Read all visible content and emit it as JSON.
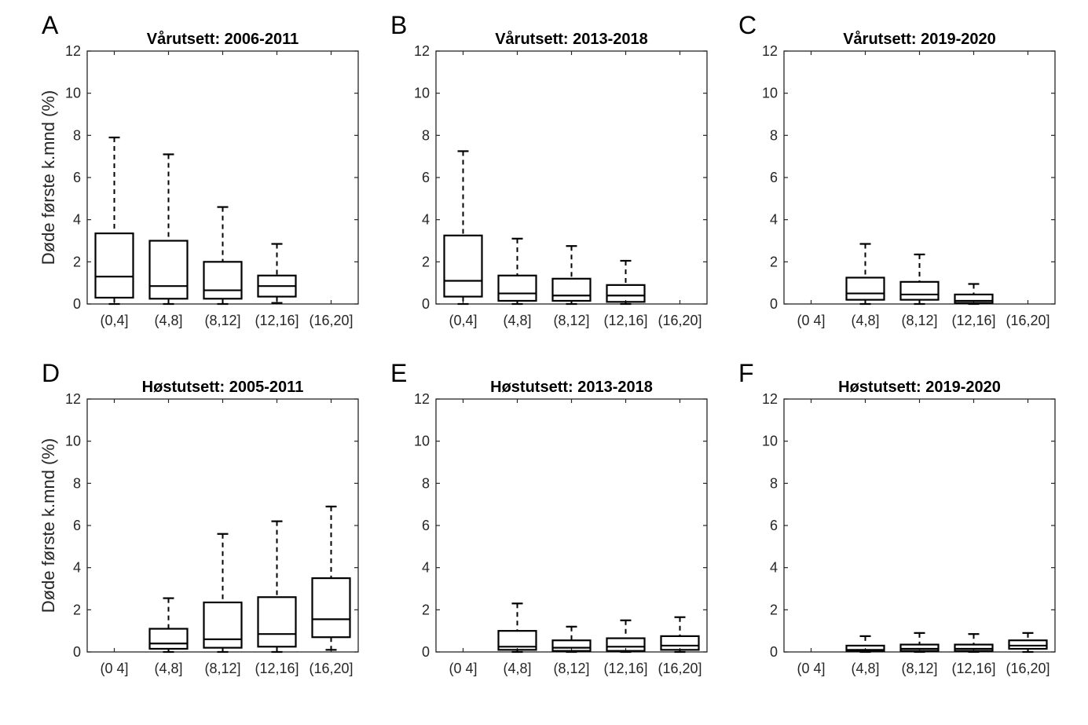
{
  "figure": {
    "y_axis_label": "Døde første k.mnd (%)"
  },
  "chart_data": [
    {
      "type": "boxplot",
      "panel": "A",
      "title": "Vårutsett: 2006-2011",
      "ylabel": "Døde første k.mnd (%)",
      "ylim": [
        0,
        12
      ],
      "yticks": [
        "0",
        "2",
        "4",
        "6",
        "8",
        "10",
        "12"
      ],
      "categories": [
        "(0,4]",
        "(4,8]",
        "(8,12]",
        "(12,16]",
        "(16,20]"
      ],
      "boxes": [
        {
          "category": "(0,4]",
          "min": 0.0,
          "q1": 0.3,
          "median": 1.3,
          "q3": 3.35,
          "max": 7.9
        },
        {
          "category": "(4,8]",
          "min": 0.0,
          "q1": 0.25,
          "median": 0.85,
          "q3": 3.0,
          "max": 7.1
        },
        {
          "category": "(8,12]",
          "min": 0.0,
          "q1": 0.25,
          "median": 0.65,
          "q3": 2.0,
          "max": 4.6
        },
        {
          "category": "(12,16]",
          "min": 0.05,
          "q1": 0.35,
          "median": 0.85,
          "q3": 1.35,
          "max": 2.85
        },
        null
      ]
    },
    {
      "type": "boxplot",
      "panel": "B",
      "title": "Vårutsett: 2013-2018",
      "ylim": [
        0,
        12
      ],
      "yticks": [
        "0",
        "2",
        "4",
        "6",
        "8",
        "10",
        "12"
      ],
      "categories": [
        "(0,4]",
        "(4,8]",
        "(8,12]",
        "(12,16]",
        "(16,20]"
      ],
      "boxes": [
        {
          "category": "(0,4]",
          "min": 0.0,
          "q1": 0.35,
          "median": 1.1,
          "q3": 3.25,
          "max": 7.25
        },
        {
          "category": "(4,8]",
          "min": 0.0,
          "q1": 0.15,
          "median": 0.5,
          "q3": 1.35,
          "max": 3.1
        },
        {
          "category": "(8,12]",
          "min": 0.0,
          "q1": 0.15,
          "median": 0.4,
          "q3": 1.2,
          "max": 2.75
        },
        {
          "category": "(12,16]",
          "min": 0.0,
          "q1": 0.1,
          "median": 0.4,
          "q3": 0.9,
          "max": 2.05
        },
        null
      ]
    },
    {
      "type": "boxplot",
      "panel": "C",
      "title": "Vårutsett: 2019-2020",
      "ylim": [
        0,
        12
      ],
      "yticks": [
        "0",
        "2",
        "4",
        "6",
        "8",
        "10",
        "12"
      ],
      "categories": [
        "(0 4]",
        "(4,8]",
        "(8,12]",
        "(12,16]",
        "(16,20]"
      ],
      "boxes": [
        null,
        {
          "category": "(4,8]",
          "min": 0.0,
          "q1": 0.2,
          "median": 0.5,
          "q3": 1.25,
          "max": 2.85
        },
        {
          "category": "(8,12]",
          "min": 0.0,
          "q1": 0.2,
          "median": 0.45,
          "q3": 1.05,
          "max": 2.35
        },
        {
          "category": "(12,16]",
          "min": 0.0,
          "q1": 0.05,
          "median": 0.15,
          "q3": 0.45,
          "max": 0.95
        },
        null
      ]
    },
    {
      "type": "boxplot",
      "panel": "D",
      "title": "Høstutsett: 2005-2011",
      "ylabel": "Døde første k.mnd (%)",
      "ylim": [
        0,
        12
      ],
      "yticks": [
        "0",
        "2",
        "4",
        "6",
        "8",
        "10",
        "12"
      ],
      "categories": [
        "(0 4]",
        "(4,8]",
        "(8,12]",
        "(12,16]",
        "(16,20]"
      ],
      "boxes": [
        null,
        {
          "category": "(4,8]",
          "min": 0.0,
          "q1": 0.15,
          "median": 0.4,
          "q3": 1.1,
          "max": 2.55
        },
        {
          "category": "(8,12]",
          "min": 0.0,
          "q1": 0.2,
          "median": 0.6,
          "q3": 2.35,
          "max": 5.6
        },
        {
          "category": "(12,16]",
          "min": 0.0,
          "q1": 0.25,
          "median": 0.85,
          "q3": 2.6,
          "max": 6.2
        },
        {
          "category": "(16,20]",
          "min": 0.1,
          "q1": 0.7,
          "median": 1.55,
          "q3": 3.5,
          "max": 6.9
        }
      ]
    },
    {
      "type": "boxplot",
      "panel": "E",
      "title": "Høstutsett: 2013-2018",
      "ylim": [
        0,
        12
      ],
      "yticks": [
        "0",
        "2",
        "4",
        "6",
        "8",
        "10",
        "12"
      ],
      "categories": [
        "(0 4]",
        "(4,8]",
        "(8,12]",
        "(12,16]",
        "(16,20]"
      ],
      "boxes": [
        null,
        {
          "category": "(4,8]",
          "min": 0.0,
          "q1": 0.1,
          "median": 0.25,
          "q3": 1.0,
          "max": 2.3
        },
        {
          "category": "(8,12]",
          "min": 0.0,
          "q1": 0.05,
          "median": 0.2,
          "q3": 0.55,
          "max": 1.2
        },
        {
          "category": "(12,16]",
          "min": 0.0,
          "q1": 0.05,
          "median": 0.25,
          "q3": 0.65,
          "max": 1.5
        },
        {
          "category": "(16,20]",
          "min": 0.0,
          "q1": 0.1,
          "median": 0.3,
          "q3": 0.75,
          "max": 1.65
        }
      ]
    },
    {
      "type": "boxplot",
      "panel": "F",
      "title": "Høstutsett: 2019-2020",
      "ylim": [
        0,
        12
      ],
      "yticks": [
        "0",
        "2",
        "4",
        "6",
        "8",
        "10",
        "12"
      ],
      "categories": [
        "(0 4]",
        "(4,8]",
        "(8,12]",
        "(12,16]",
        "(16,20]"
      ],
      "boxes": [
        null,
        {
          "category": "(4,8]",
          "min": 0.0,
          "q1": 0.05,
          "median": 0.1,
          "q3": 0.3,
          "max": 0.75
        },
        {
          "category": "(8,12]",
          "min": 0.0,
          "q1": 0.05,
          "median": 0.15,
          "q3": 0.35,
          "max": 0.9
        },
        {
          "category": "(12,16]",
          "min": 0.0,
          "q1": 0.05,
          "median": 0.15,
          "q3": 0.35,
          "max": 0.85
        },
        {
          "category": "(16,20]",
          "min": 0.0,
          "q1": 0.15,
          "median": 0.3,
          "q3": 0.55,
          "max": 0.9
        }
      ]
    }
  ]
}
